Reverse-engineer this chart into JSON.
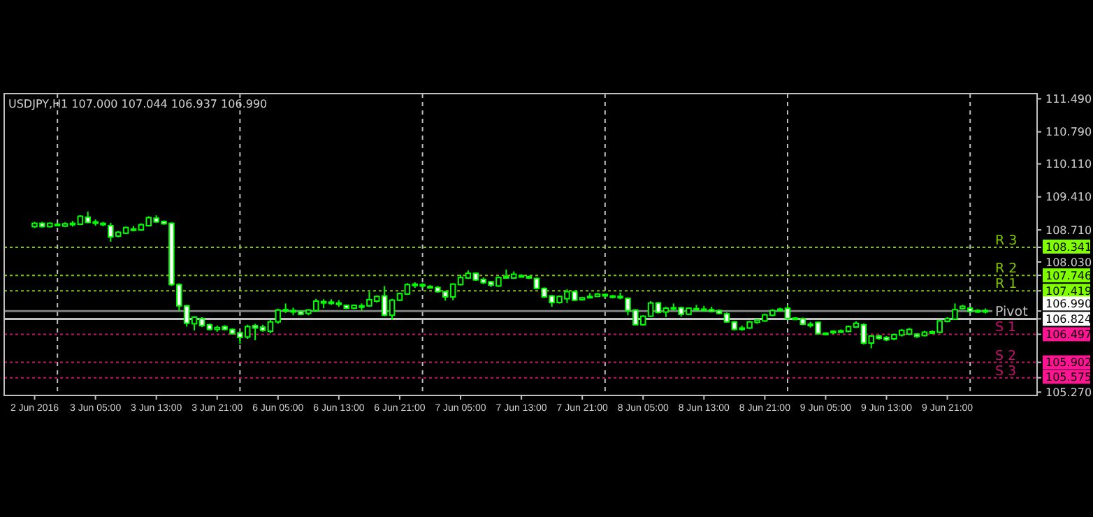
{
  "chart_data": {
    "type": "candlestick",
    "title": "USDJPY,H1 107.000 107.044 106.937 106.990",
    "categories": [
      "2 Jun 2016",
      null,
      null,
      null,
      null,
      null,
      null,
      null,
      "3 Jun 05:00",
      null,
      null,
      null,
      null,
      null,
      null,
      null,
      "3 Jun 13:00",
      null,
      null,
      null,
      null,
      null,
      null,
      null,
      "3 Jun 21:00",
      null,
      null,
      null,
      null,
      null,
      null,
      null,
      "6 Jun 05:00",
      null,
      null,
      null,
      null,
      null,
      null,
      null,
      "6 Jun 13:00",
      null,
      null,
      null,
      null,
      null,
      null,
      null,
      "6 Jun 21:00",
      null,
      null,
      null,
      null,
      null,
      null,
      null,
      "7 Jun 05:00",
      null,
      null,
      null,
      null,
      null,
      null,
      null,
      "7 Jun 13:00",
      null,
      null,
      null,
      null,
      null,
      null,
      null,
      "7 Jun 21:00",
      null,
      null,
      null,
      null,
      null,
      null,
      null,
      "8 Jun 05:00",
      null,
      null,
      null,
      null,
      null,
      null,
      null,
      "8 Jun 13:00",
      null,
      null,
      null,
      null,
      null,
      null,
      null,
      "8 Jun 21:00",
      null,
      null,
      null,
      null,
      null,
      null,
      null,
      "9 Jun 05:00",
      null,
      null,
      null,
      null,
      null,
      null,
      null,
      "9 Jun 13:00",
      null,
      null,
      null,
      null,
      null,
      null,
      null,
      "9 Jun 21:00",
      null,
      null,
      null,
      null,
      null
    ],
    "ohlc": [
      [
        108.78,
        108.88,
        108.75,
        108.85
      ],
      [
        108.85,
        108.88,
        108.76,
        108.78
      ],
      [
        108.78,
        108.87,
        108.76,
        108.85
      ],
      [
        108.83,
        108.86,
        108.8,
        108.82
      ],
      [
        108.79,
        108.87,
        108.77,
        108.84
      ],
      [
        108.85,
        108.9,
        108.78,
        108.84
      ],
      [
        108.83,
        109.02,
        108.81,
        109.0
      ],
      [
        108.98,
        109.1,
        108.85,
        108.87
      ],
      [
        108.88,
        108.93,
        108.8,
        108.86
      ],
      [
        108.85,
        108.88,
        108.79,
        108.82
      ],
      [
        108.8,
        108.86,
        108.46,
        108.56
      ],
      [
        108.58,
        108.69,
        108.55,
        108.66
      ],
      [
        108.64,
        108.78,
        108.62,
        108.76
      ],
      [
        108.73,
        108.79,
        108.68,
        108.73
      ],
      [
        108.71,
        108.85,
        108.69,
        108.82
      ],
      [
        108.8,
        109.0,
        108.78,
        108.97
      ],
      [
        108.96,
        109.02,
        108.86,
        108.88
      ],
      [
        108.89,
        108.91,
        108.82,
        108.84
      ],
      [
        108.85,
        108.87,
        107.52,
        107.55
      ],
      [
        107.55,
        107.58,
        106.98,
        107.1
      ],
      [
        107.1,
        107.12,
        106.66,
        106.73
      ],
      [
        106.72,
        106.88,
        106.58,
        106.86
      ],
      [
        106.83,
        106.86,
        106.65,
        106.68
      ],
      [
        106.7,
        106.72,
        106.58,
        106.6
      ],
      [
        106.6,
        106.68,
        106.55,
        106.64
      ],
      [
        106.66,
        106.69,
        106.58,
        106.6
      ],
      [
        106.6,
        106.62,
        106.49,
        106.51
      ],
      [
        106.53,
        106.55,
        106.29,
        106.43
      ],
      [
        106.44,
        106.7,
        106.4,
        106.66
      ],
      [
        106.68,
        106.72,
        106.37,
        106.63
      ],
      [
        106.65,
        106.7,
        106.55,
        106.58
      ],
      [
        106.56,
        106.8,
        106.52,
        106.76
      ],
      [
        106.76,
        107.04,
        106.72,
        107.01
      ],
      [
        107.0,
        107.15,
        106.95,
        107.02
      ],
      [
        107.0,
        107.06,
        106.9,
        106.99
      ],
      [
        106.98,
        107.0,
        106.9,
        106.92
      ],
      [
        106.94,
        107.03,
        106.9,
        107.01
      ],
      [
        107.0,
        107.25,
        106.98,
        107.2
      ],
      [
        107.18,
        107.24,
        107.05,
        107.19
      ],
      [
        107.18,
        107.24,
        107.12,
        107.16
      ],
      [
        107.16,
        107.22,
        107.08,
        107.15
      ],
      [
        107.11,
        107.13,
        107.03,
        107.05
      ],
      [
        107.05,
        107.13,
        107.03,
        107.11
      ],
      [
        107.1,
        107.15,
        107.0,
        107.09
      ],
      [
        107.1,
        107.4,
        107.08,
        107.23
      ],
      [
        107.2,
        107.32,
        107.17,
        107.3
      ],
      [
        107.31,
        107.52,
        106.88,
        106.9
      ],
      [
        106.9,
        107.25,
        106.8,
        107.22
      ],
      [
        107.22,
        107.38,
        107.2,
        107.36
      ],
      [
        107.35,
        107.58,
        107.33,
        107.55
      ],
      [
        107.55,
        107.6,
        107.48,
        107.56
      ],
      [
        107.55,
        107.58,
        107.48,
        107.52
      ],
      [
        107.51,
        107.54,
        107.47,
        107.5
      ],
      [
        107.49,
        107.52,
        107.38,
        107.4
      ],
      [
        107.4,
        107.42,
        107.21,
        107.29
      ],
      [
        107.29,
        107.58,
        107.22,
        107.56
      ],
      [
        107.55,
        107.76,
        107.53,
        107.7
      ],
      [
        107.69,
        107.85,
        107.67,
        107.79
      ],
      [
        107.79,
        107.81,
        107.63,
        107.65
      ],
      [
        107.66,
        107.7,
        107.56,
        107.59
      ],
      [
        107.61,
        107.63,
        107.5,
        107.54
      ],
      [
        107.52,
        107.72,
        107.5,
        107.7
      ],
      [
        107.69,
        107.87,
        107.68,
        107.72
      ],
      [
        107.69,
        107.83,
        107.67,
        107.77
      ],
      [
        107.74,
        107.77,
        107.7,
        107.72
      ],
      [
        107.72,
        107.74,
        107.67,
        107.69
      ],
      [
        107.68,
        107.7,
        107.45,
        107.47
      ],
      [
        107.47,
        107.49,
        107.27,
        107.29
      ],
      [
        107.31,
        107.33,
        107.08,
        107.17
      ],
      [
        107.17,
        107.32,
        107.15,
        107.3
      ],
      [
        107.25,
        107.45,
        107.16,
        107.4
      ],
      [
        107.4,
        107.42,
        107.2,
        107.22
      ],
      [
        107.23,
        107.29,
        107.21,
        107.27
      ],
      [
        107.28,
        107.37,
        107.27,
        107.3
      ],
      [
        107.3,
        107.37,
        107.29,
        107.35
      ],
      [
        107.34,
        107.36,
        107.27,
        107.32
      ],
      [
        107.31,
        107.33,
        107.26,
        107.28
      ],
      [
        107.29,
        107.38,
        107.24,
        107.3
      ],
      [
        107.26,
        107.28,
        106.9,
        107.0
      ],
      [
        107.01,
        107.03,
        106.68,
        106.7
      ],
      [
        106.7,
        106.9,
        106.68,
        106.88
      ],
      [
        106.88,
        107.2,
        106.86,
        107.16
      ],
      [
        107.16,
        107.18,
        106.94,
        106.96
      ],
      [
        106.97,
        107.08,
        106.86,
        107.05
      ],
      [
        107.06,
        107.15,
        107.0,
        107.05
      ],
      [
        107.06,
        107.08,
        106.87,
        106.92
      ],
      [
        106.92,
        107.07,
        106.9,
        107.05
      ],
      [
        107.04,
        107.12,
        107.01,
        107.03
      ],
      [
        107.03,
        107.1,
        107.0,
        107.02
      ],
      [
        107.02,
        107.08,
        106.96,
        106.98
      ],
      [
        107.0,
        107.02,
        106.92,
        106.94
      ],
      [
        106.93,
        106.96,
        106.74,
        106.76
      ],
      [
        106.76,
        106.78,
        106.58,
        106.6
      ],
      [
        106.62,
        106.68,
        106.57,
        106.63
      ],
      [
        106.63,
        106.78,
        106.61,
        106.76
      ],
      [
        106.75,
        106.82,
        106.72,
        106.8
      ],
      [
        106.78,
        106.93,
        106.76,
        106.91
      ],
      [
        106.9,
        107.03,
        106.88,
        107.0
      ],
      [
        107.01,
        107.06,
        106.99,
        107.03
      ],
      [
        107.05,
        107.12,
        106.8,
        106.83
      ],
      [
        106.84,
        106.86,
        106.8,
        106.82
      ],
      [
        106.83,
        106.85,
        106.69,
        106.71
      ],
      [
        106.71,
        106.76,
        106.64,
        106.7
      ],
      [
        106.75,
        106.77,
        106.49,
        106.51
      ],
      [
        106.52,
        106.54,
        106.48,
        106.5
      ],
      [
        106.53,
        106.58,
        106.5,
        106.56
      ],
      [
        106.55,
        106.6,
        106.53,
        106.57
      ],
      [
        106.56,
        106.68,
        106.54,
        106.66
      ],
      [
        106.65,
        106.77,
        106.63,
        106.73
      ],
      [
        106.7,
        106.73,
        106.28,
        106.31
      ],
      [
        106.31,
        106.48,
        106.2,
        106.46
      ],
      [
        106.46,
        106.49,
        106.38,
        106.41
      ],
      [
        106.43,
        106.46,
        106.35,
        106.38
      ],
      [
        106.4,
        106.51,
        106.37,
        106.49
      ],
      [
        106.48,
        106.61,
        106.45,
        106.58
      ],
      [
        106.5,
        106.63,
        106.48,
        106.6
      ],
      [
        106.5,
        106.52,
        106.42,
        106.45
      ],
      [
        106.47,
        106.57,
        106.45,
        106.54
      ],
      [
        106.53,
        106.58,
        106.51,
        106.55
      ],
      [
        106.54,
        106.8,
        106.52,
        106.78
      ],
      [
        106.77,
        106.86,
        106.75,
        106.83
      ],
      [
        106.82,
        107.15,
        106.8,
        107.02
      ],
      [
        107.04,
        107.12,
        107.02,
        107.09
      ],
      [
        107.05,
        107.07,
        106.96,
        106.98
      ],
      [
        106.97,
        107.03,
        106.95,
        107.0
      ],
      [
        107.0,
        107.044,
        106.937,
        106.99
      ]
    ],
    "ylim": [
      105.2,
      111.6
    ],
    "yticks": [
      {
        "value": 111.49,
        "label": "111.490"
      },
      {
        "value": 110.79,
        "label": "110.790"
      },
      {
        "value": 110.11,
        "label": "110.110"
      },
      {
        "value": 109.41,
        "label": "109.410"
      },
      {
        "value": 108.71,
        "label": "108.710"
      },
      {
        "value": 108.03,
        "label": "108.030"
      },
      {
        "value": 105.27,
        "label": "105.270"
      },
      {
        "value": 108.341,
        "label": "108.341"
      },
      {
        "value": 107.746,
        "label": "107.746"
      },
      {
        "value": 107.419,
        "label": "107.419"
      },
      {
        "value": 106.99,
        "label": "106.990"
      },
      {
        "value": 106.824,
        "label": "106.824"
      },
      {
        "value": 106.497,
        "label": "106.497"
      },
      {
        "value": 105.902,
        "label": "105.902"
      },
      {
        "value": 105.575,
        "label": "105.575"
      }
    ],
    "grid": "x",
    "ref_lines": [
      {
        "axis": "y",
        "value": 108.341,
        "label": "R 3",
        "color": "#7fc600",
        "line_style": "dotted"
      },
      {
        "axis": "y",
        "value": 107.746,
        "label": "R 2",
        "color": "#7fc600",
        "line_style": "dotted"
      },
      {
        "axis": "y",
        "value": 107.419,
        "label": "R 1",
        "color": "#7fc600",
        "line_style": "dotted"
      },
      {
        "axis": "y",
        "value": 106.99,
        "color": "#808080",
        "line_style": "solid"
      },
      {
        "axis": "y",
        "value": 106.824,
        "label": "Pivot",
        "color": "#c0c0c0",
        "line_style": "solid"
      },
      {
        "axis": "y",
        "value": 106.497,
        "label": "S 1",
        "color": "#c8106e",
        "line_style": "dotted"
      },
      {
        "axis": "y",
        "value": 105.902,
        "label": "S 2",
        "color": "#c8106e",
        "line_style": "dotted"
      },
      {
        "axis": "y",
        "value": 105.575,
        "label": "S 3",
        "color": "#c8106e",
        "line_style": "dotted"
      }
    ]
  }
}
